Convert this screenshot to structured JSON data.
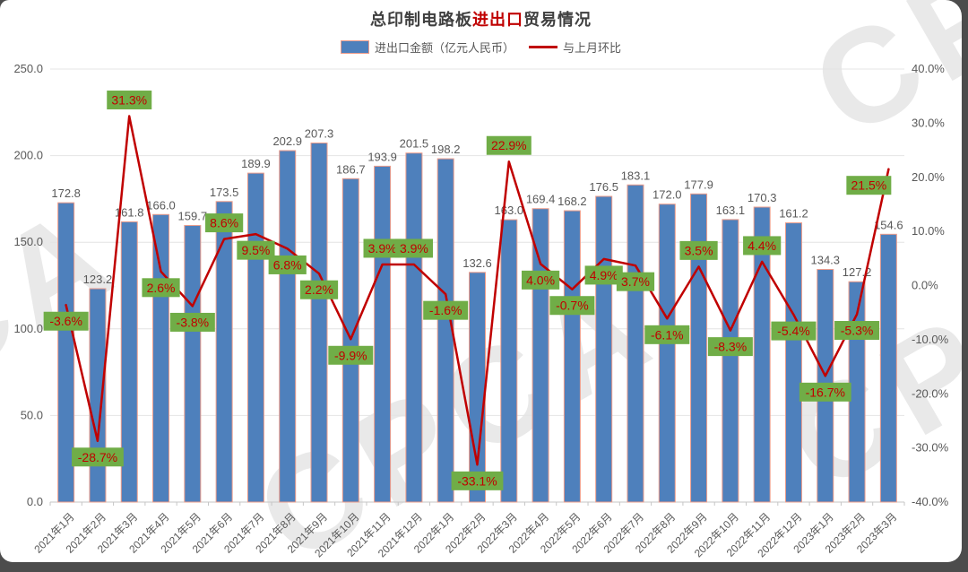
{
  "title": {
    "prefix": "总印制电路板",
    "highlight": "进出口",
    "suffix": "贸易情况"
  },
  "legend": {
    "bar_label": "进出口金额（亿元人民币）",
    "line_label": "与上月环比"
  },
  "watermark": {
    "text": "CPCA"
  },
  "colors": {
    "bar_fill": "#4e80bc",
    "bar_border": "#ed9c8a",
    "line": "#c00000",
    "pct_label_bg": "#70ad47",
    "pct_label_text": "#c00000",
    "axis_text": "#595959",
    "value_label_text": "#595959",
    "gridline": "#e4e4e4",
    "axis_line": "#c6c6c6",
    "title_text": "#404040",
    "title_highlight": "#c00000"
  },
  "chart_data": {
    "type": "bar",
    "title": "总印制电路板进出口贸易情况",
    "categories": [
      "2021年1月",
      "2021年2月",
      "2021年3月",
      "2021年4月",
      "2021年5月",
      "2021年6月",
      "2021年7月",
      "2021年8月",
      "2021年9月",
      "2021年10月",
      "2021年11月",
      "2021年12月",
      "2022年1月",
      "2022年2月",
      "2022年3月",
      "2022年4月",
      "2022年5月",
      "2022年6月",
      "2022年7月",
      "2022年8月",
      "2022年9月",
      "2022年10月",
      "2022年11月",
      "2022年12月",
      "2023年1月",
      "2023年2月",
      "2023年3月"
    ],
    "series": [
      {
        "name": "进出口金额（亿元人民币）",
        "type": "bar",
        "axis": "left",
        "values": [
          172.8,
          123.2,
          161.8,
          166.0,
          159.7,
          173.5,
          189.9,
          202.9,
          207.3,
          186.7,
          193.9,
          201.5,
          198.2,
          132.6,
          163.0,
          169.4,
          168.2,
          176.5,
          183.1,
          172.0,
          177.9,
          163.1,
          170.3,
          161.2,
          134.3,
          127.2,
          154.6
        ]
      },
      {
        "name": "与上月环比",
        "type": "line",
        "axis": "right",
        "values": [
          -3.6,
          -28.7,
          31.3,
          2.6,
          -3.8,
          8.6,
          9.5,
          6.8,
          2.2,
          -9.9,
          3.9,
          3.9,
          -1.6,
          -33.1,
          22.9,
          4.0,
          -0.7,
          4.9,
          3.7,
          -6.1,
          3.5,
          -8.3,
          4.4,
          -5.4,
          -16.7,
          -5.3,
          21.5
        ],
        "labels": [
          "-3.6%",
          "-28.7%",
          "31.3%",
          "2.6%",
          "-3.8%",
          "8.6%",
          "9.5%",
          "6.8%",
          "2.2%",
          "-9.9%",
          "3.9%",
          "3.9%",
          "-1.6%",
          "-33.1%",
          "22.9%",
          "4.0%",
          "-0.7%",
          "4.9%",
          "3.7%",
          "-6.1%",
          "3.5%",
          "-8.3%",
          "4.4%",
          "-5.4%",
          "-16.7%",
          "-5.3%",
          "21.5%"
        ],
        "label_pos": [
          "below",
          "below",
          "above",
          "below",
          "below",
          "above",
          "below",
          "below",
          "below",
          "below",
          "above",
          "above",
          "below",
          "below",
          "above",
          "below",
          "below",
          "below",
          "below",
          "below",
          "above",
          "below",
          "above",
          "below",
          "below",
          "below",
          "below"
        ]
      }
    ],
    "left_axis": {
      "min": 0,
      "max": 250,
      "ticks": [
        "0.0",
        "50.0",
        "100.0",
        "150.0",
        "200.0",
        "250.0"
      ],
      "tick_values": [
        0,
        50,
        100,
        150,
        200,
        250
      ]
    },
    "right_axis": {
      "min": -40,
      "max": 40,
      "ticks": [
        "-40.0%",
        "-30.0%",
        "-20.0%",
        "-10.0%",
        "0.0%",
        "10.0%",
        "20.0%",
        "30.0%",
        "40.0%"
      ],
      "tick_values": [
        -40,
        -30,
        -20,
        -10,
        0,
        10,
        20,
        30,
        40
      ]
    },
    "grid": true,
    "legend_position": "top"
  }
}
